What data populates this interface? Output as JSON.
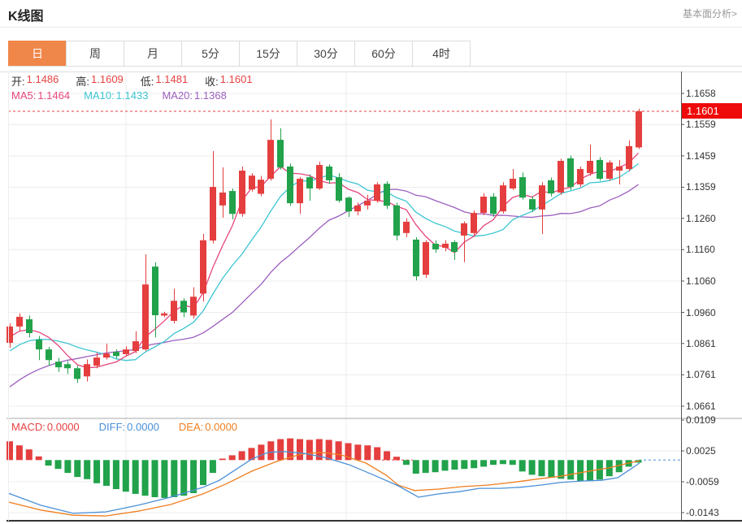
{
  "page": {
    "title": "K线图",
    "link": "基本面分析>"
  },
  "tabs": [
    {
      "label": "日",
      "active": true
    },
    {
      "label": "周",
      "active": false
    },
    {
      "label": "月",
      "active": false
    },
    {
      "label": "5分",
      "active": false
    },
    {
      "label": "15分",
      "active": false
    },
    {
      "label": "30分",
      "active": false
    },
    {
      "label": "60分",
      "active": false
    },
    {
      "label": "4时",
      "active": false
    }
  ],
  "ohlc": {
    "fields": [
      {
        "label": "开:",
        "value": "1.1486"
      },
      {
        "label": "高:",
        "value": "1.1609"
      },
      {
        "label": "低:",
        "value": "1.1481"
      },
      {
        "label": "收:",
        "value": "1.1601"
      }
    ]
  },
  "ma": {
    "fields": [
      {
        "label": "MA5:",
        "value": "1.1464",
        "color": "#e6457c"
      },
      {
        "label": "MA10:",
        "value": "1.1433",
        "color": "#3cc5d2"
      },
      {
        "label": "MA20:",
        "value": "1.1368",
        "color": "#9c5fc0"
      }
    ]
  },
  "macd_header": {
    "fields": [
      {
        "label": "MACD:",
        "value": "0.0000",
        "color": "#e64242"
      },
      {
        "label": "DIFF:",
        "value": "0.0000",
        "color": "#4a90d8"
      },
      {
        "label": "DEA:",
        "value": "0.0000",
        "color": "#ef7e1f"
      }
    ]
  },
  "price_tag": {
    "value": "1.1601"
  },
  "colors": {
    "up": "#e53e3e",
    "down": "#21a24b",
    "ma5": "#e6457c",
    "ma10": "#3cc5d2",
    "ma20": "#9c5fc0",
    "diff": "#4a90d8",
    "dea": "#ef7e1f",
    "tab_active_bg": "#f0874a",
    "price_tag_bg": "#ee0a0a",
    "value_red": "#e64242",
    "grid": "#ececec",
    "axis": "#555"
  },
  "chart_data": {
    "type": "candlestick",
    "title": "K线图",
    "current_price": 1.1601,
    "main_axis": {
      "max": 1.1658,
      "min": 1.0661,
      "ticks": [
        "1.1658",
        "1.1559",
        "1.1459",
        "1.1359",
        "1.1260",
        "1.1160",
        "1.1060",
        "1.0960",
        "1.0861",
        "1.0761",
        "1.0661"
      ]
    },
    "macd_axis": {
      "max": 0.0109,
      "min": -0.0143,
      "ticks": [
        "0.0109",
        "0.0025",
        "-0.0059",
        "-0.0143"
      ]
    },
    "x_gridlines": [
      155,
      426,
      697
    ],
    "pre_closes": [
      1.05,
      1.052,
      1.0545,
      1.057,
      1.0595,
      1.062,
      1.0645,
      1.067,
      1.0695,
      1.072,
      1.0745,
      1.077,
      1.0795,
      1.0815,
      1.0835,
      1.0855,
      1.087,
      1.088,
      1.089
    ],
    "candles": [
      [
        1.0863,
        1.0925,
        1.0847,
        1.0915
      ],
      [
        1.0915,
        1.0957,
        1.09,
        1.0946
      ],
      [
        1.0938,
        1.095,
        1.088,
        1.0894
      ],
      [
        1.0873,
        1.0885,
        1.0808,
        1.0842
      ],
      [
        1.0842,
        1.085,
        1.079,
        1.0808
      ],
      [
        1.0803,
        1.0815,
        1.077,
        1.0785
      ],
      [
        1.0795,
        1.0805,
        1.0764,
        1.0782
      ],
      [
        1.0782,
        1.079,
        1.0735,
        1.0748
      ],
      [
        1.0756,
        1.081,
        1.074,
        1.0795
      ],
      [
        1.079,
        1.0832,
        1.0782,
        1.0816
      ],
      [
        1.0816,
        1.086,
        1.081,
        1.0829
      ],
      [
        1.0834,
        1.0842,
        1.0813,
        1.0821
      ],
      [
        1.0827,
        1.0852,
        1.082,
        1.0842
      ],
      [
        1.0837,
        1.09,
        1.083,
        1.0868
      ],
      [
        1.0842,
        1.1145,
        1.0837,
        1.1049
      ],
      [
        1.1106,
        1.112,
        1.088,
        1.0951
      ],
      [
        1.095,
        1.0962,
        1.0945,
        1.0957
      ],
      [
        1.0933,
        1.1036,
        1.0925,
        1.0997
      ],
      [
        1.0997,
        1.1005,
        1.0945,
        1.096
      ],
      [
        1.095,
        1.104,
        1.094,
        1.101
      ],
      [
        1.102,
        1.121,
        1.0995,
        1.119
      ],
      [
        1.1189,
        1.1474,
        1.118,
        1.136
      ],
      [
        1.1301,
        1.1422,
        1.1262,
        1.1342
      ],
      [
        1.1347,
        1.1355,
        1.1257,
        1.1274
      ],
      [
        1.1274,
        1.1425,
        1.1265,
        1.1412
      ],
      [
        1.1352,
        1.1404,
        1.1345,
        1.1396
      ],
      [
        1.1338,
        1.1395,
        1.133,
        1.1383
      ],
      [
        1.1386,
        1.1575,
        1.138,
        1.151
      ],
      [
        1.151,
        1.1547,
        1.1415,
        1.1422
      ],
      [
        1.1425,
        1.1435,
        1.13,
        1.1308
      ],
      [
        1.1308,
        1.1392,
        1.1274,
        1.1386
      ],
      [
        1.1391,
        1.14,
        1.1316,
        1.1355
      ],
      [
        1.1355,
        1.144,
        1.135,
        1.143
      ],
      [
        1.1425,
        1.1432,
        1.137,
        1.1381
      ],
      [
        1.1391,
        1.1404,
        1.131,
        1.1316
      ],
      [
        1.1326,
        1.133,
        1.1264,
        1.1282
      ],
      [
        1.1282,
        1.131,
        1.127,
        1.1301
      ],
      [
        1.1301,
        1.1335,
        1.1288,
        1.1316
      ],
      [
        1.1316,
        1.1375,
        1.131,
        1.1368
      ],
      [
        1.137,
        1.1378,
        1.129,
        1.13
      ],
      [
        1.1301,
        1.131,
        1.119,
        1.1205
      ],
      [
        1.1213,
        1.126,
        1.12,
        1.1249
      ],
      [
        1.1192,
        1.12,
        1.1062,
        1.1075
      ],
      [
        1.108,
        1.119,
        1.107,
        1.1184
      ],
      [
        1.1179,
        1.119,
        1.115,
        1.1161
      ],
      [
        1.1166,
        1.119,
        1.1155,
        1.1179
      ],
      [
        1.1184,
        1.119,
        1.1127,
        1.1153
      ],
      [
        1.1205,
        1.125,
        1.112,
        1.1244
      ],
      [
        1.1213,
        1.1285,
        1.1205,
        1.1277
      ],
      [
        1.1277,
        1.134,
        1.127,
        1.1329
      ],
      [
        1.1329,
        1.134,
        1.1265,
        1.1274
      ],
      [
        1.1282,
        1.1375,
        1.1275,
        1.1365
      ],
      [
        1.1355,
        1.1417,
        1.135,
        1.1386
      ],
      [
        1.1391,
        1.1406,
        1.132,
        1.1326
      ],
      [
        1.1321,
        1.133,
        1.128,
        1.1288
      ],
      [
        1.1288,
        1.1375,
        1.121,
        1.1365
      ],
      [
        1.1381,
        1.139,
        1.133,
        1.1339
      ],
      [
        1.1342,
        1.145,
        1.1335,
        1.1443
      ],
      [
        1.1451,
        1.146,
        1.135,
        1.136
      ],
      [
        1.1368,
        1.1425,
        1.136,
        1.1417
      ],
      [
        1.1404,
        1.1495,
        1.1395,
        1.1443
      ],
      [
        1.1446,
        1.1455,
        1.138,
        1.1386
      ],
      [
        1.1386,
        1.1445,
        1.138,
        1.1438
      ],
      [
        1.1412,
        1.1446,
        1.1368,
        1.1425
      ],
      [
        1.1417,
        1.1508,
        1.141,
        1.149
      ],
      [
        1.1486,
        1.1609,
        1.1481,
        1.1601
      ]
    ],
    "macd": {
      "hist": [
        0.0051,
        0.004,
        0.0029,
        0.001,
        -0.0015,
        -0.0024,
        -0.0035,
        -0.0046,
        -0.0052,
        -0.0063,
        -0.007,
        -0.0079,
        -0.0086,
        -0.0092,
        -0.0097,
        -0.0101,
        -0.0103,
        -0.0101,
        -0.0097,
        -0.009,
        -0.0068,
        -0.0035,
        0.0004,
        0.0013,
        0.0024,
        0.0033,
        0.0042,
        0.0051,
        0.0057,
        0.0059,
        0.0057,
        0.0055,
        0.0057,
        0.0055,
        0.0051,
        0.0046,
        0.0042,
        0.004,
        0.0035,
        0.0024,
        0.0009,
        -0.0013,
        -0.0037,
        -0.0035,
        -0.0033,
        -0.0029,
        -0.0026,
        -0.0024,
        -0.0022,
        -0.0018,
        -0.0013,
        -0.0011,
        -0.0013,
        -0.0031,
        -0.004,
        -0.0044,
        -0.0048,
        -0.0051,
        -0.0053,
        -0.0057,
        -0.0057,
        -0.0053,
        -0.0044,
        -0.0033,
        -0.0018,
        -0.0007
      ],
      "diff_line": [
        [
          10,
          -0.009
        ],
        [
          50,
          -0.0123
        ],
        [
          90,
          -0.0145
        ],
        [
          130,
          -0.0141
        ],
        [
          170,
          -0.0123
        ],
        [
          210,
          -0.0101
        ],
        [
          250,
          -0.0074
        ],
        [
          270,
          -0.0055
        ],
        [
          290,
          -0.0026
        ],
        [
          310,
          0.0003
        ],
        [
          330,
          0.0021
        ],
        [
          350,
          0.0023
        ],
        [
          375,
          0.0018
        ],
        [
          400,
          0.0007
        ],
        [
          430,
          -0.0013
        ],
        [
          460,
          -0.0041
        ],
        [
          490,
          -0.007
        ],
        [
          515,
          -0.0101
        ],
        [
          540,
          -0.0092
        ],
        [
          565,
          -0.0086
        ],
        [
          590,
          -0.0077
        ],
        [
          615,
          -0.0077
        ],
        [
          640,
          -0.0074
        ],
        [
          665,
          -0.0068
        ],
        [
          690,
          -0.0061
        ],
        [
          715,
          -0.0057
        ],
        [
          740,
          -0.0055
        ],
        [
          760,
          -0.0048
        ],
        [
          775,
          -0.0026
        ],
        [
          787,
          -0.0008
        ]
      ],
      "dea_line": [
        [
          10,
          -0.0114
        ],
        [
          50,
          -0.0136
        ],
        [
          90,
          -0.015
        ],
        [
          130,
          -0.0152
        ],
        [
          170,
          -0.0139
        ],
        [
          210,
          -0.0121
        ],
        [
          250,
          -0.0092
        ],
        [
          280,
          -0.0063
        ],
        [
          310,
          -0.003
        ],
        [
          340,
          -0.0004
        ],
        [
          370,
          0.0016
        ],
        [
          395,
          0.0021
        ],
        [
          420,
          0.0014
        ],
        [
          450,
          -0.0008
        ],
        [
          475,
          -0.0041
        ],
        [
          490,
          -0.0068
        ],
        [
          510,
          -0.0083
        ],
        [
          540,
          -0.0079
        ],
        [
          570,
          -0.0072
        ],
        [
          600,
          -0.0068
        ],
        [
          630,
          -0.0061
        ],
        [
          660,
          -0.0052
        ],
        [
          690,
          -0.0044
        ],
        [
          720,
          -0.0032
        ],
        [
          750,
          -0.0021
        ],
        [
          770,
          -0.001
        ],
        [
          787,
          -0.0002
        ]
      ]
    }
  }
}
